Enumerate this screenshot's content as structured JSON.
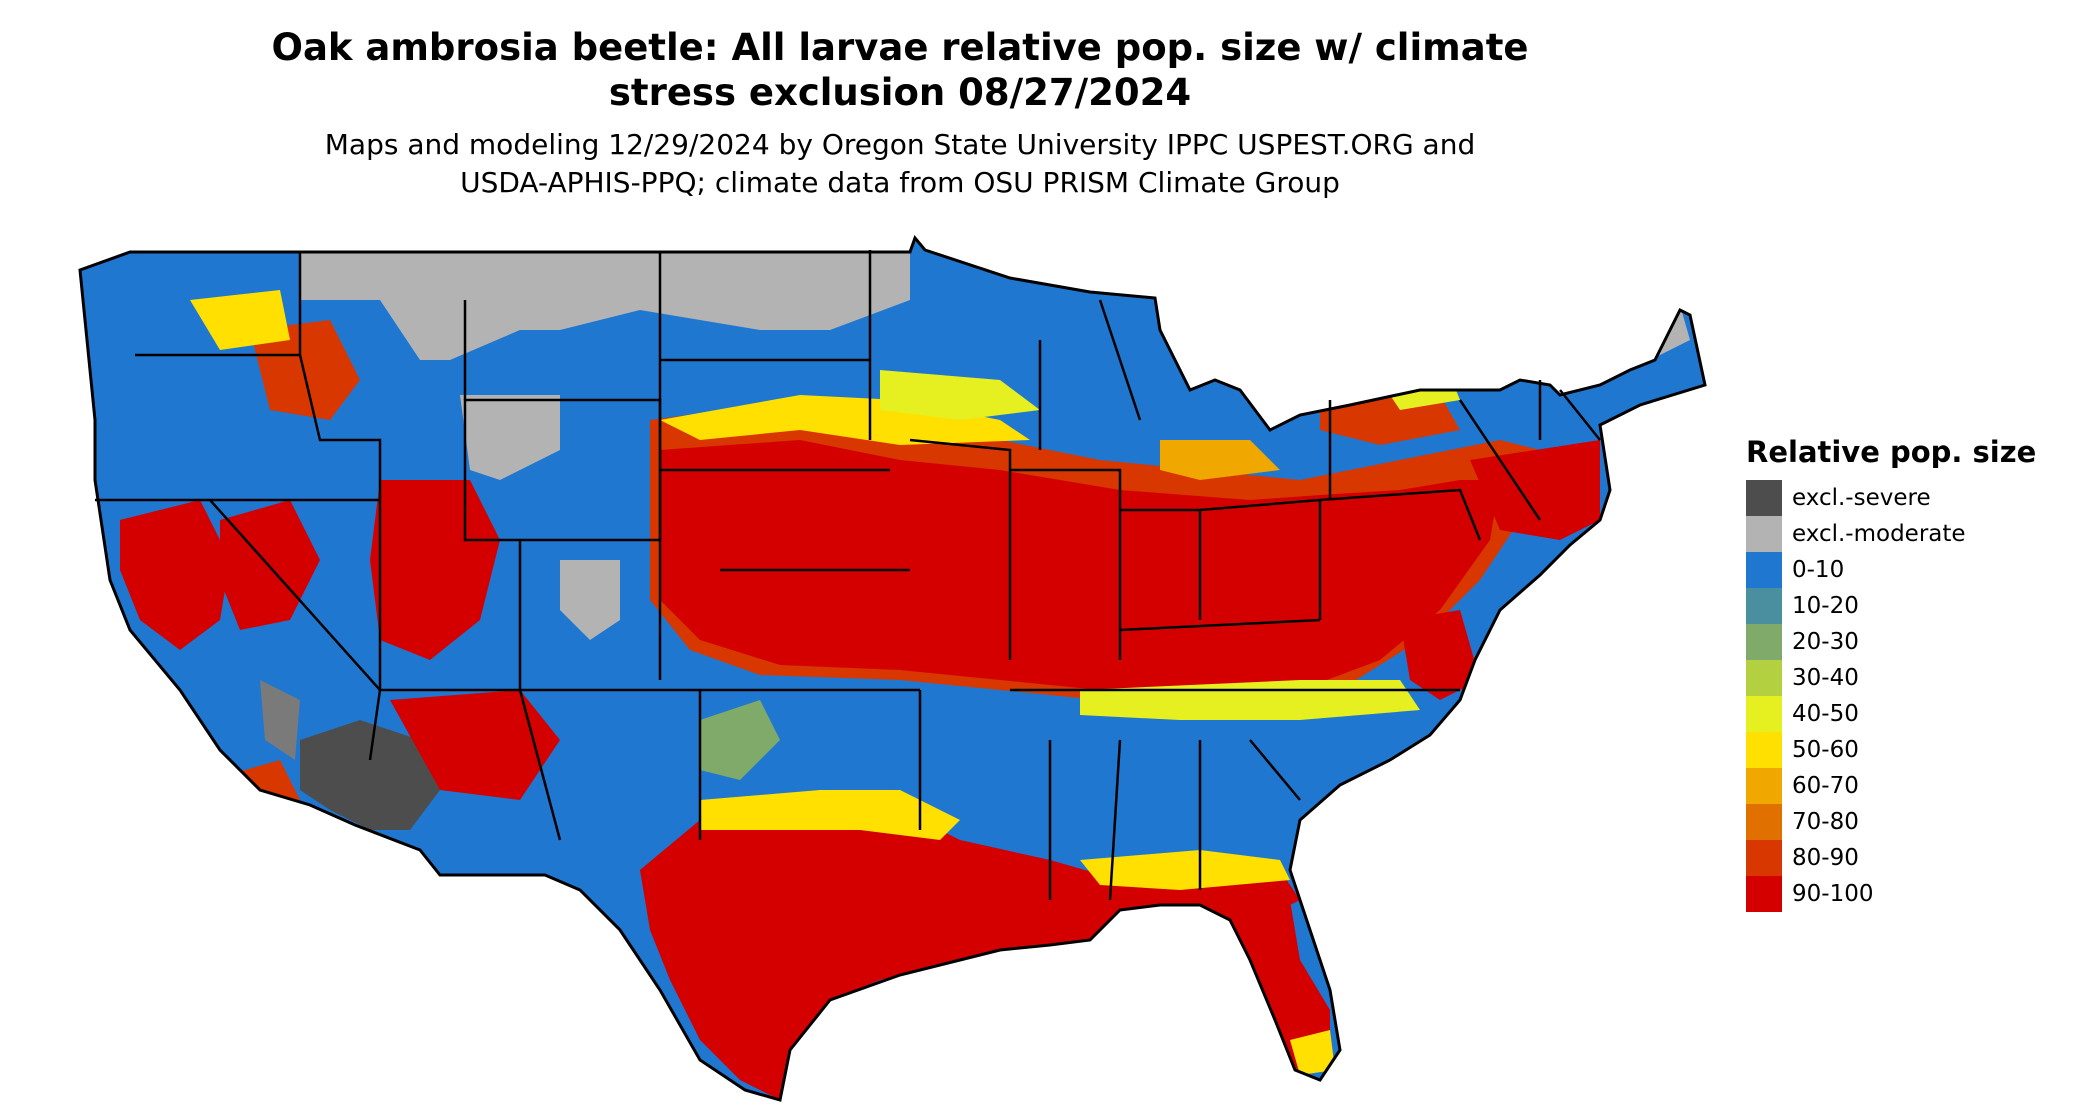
{
  "title": {
    "line1": "Oak ambrosia beetle: All larvae relative pop. size w/ climate",
    "line2": "stress exclusion 08/27/2024"
  },
  "subtitle": {
    "line1": "Maps and modeling 12/29/2024 by Oregon State University IPPC USPEST.ORG and",
    "line2": "USDA-APHIS-PPQ; climate data from OSU PRISM Climate Group"
  },
  "legend": {
    "title": "Relative pop. size",
    "items": [
      {
        "label": "excl.-severe",
        "color": "#4d4d4d"
      },
      {
        "label": "excl.-moderate",
        "color": "#b3b3b3"
      },
      {
        "label": "0-10",
        "color": "#1f77d0"
      },
      {
        "label": "10-20",
        "color": "#4a8fa0"
      },
      {
        "label": "20-30",
        "color": "#7faa6a"
      },
      {
        "label": "30-40",
        "color": "#b3d040"
      },
      {
        "label": "40-50",
        "color": "#e6f020"
      },
      {
        "label": "50-60",
        "color": "#ffe000"
      },
      {
        "label": "60-70",
        "color": "#f0a800"
      },
      {
        "label": "70-80",
        "color": "#e07000"
      },
      {
        "label": "80-90",
        "color": "#d83800"
      },
      {
        "label": "90-100",
        "color": "#d40000"
      }
    ]
  }
}
